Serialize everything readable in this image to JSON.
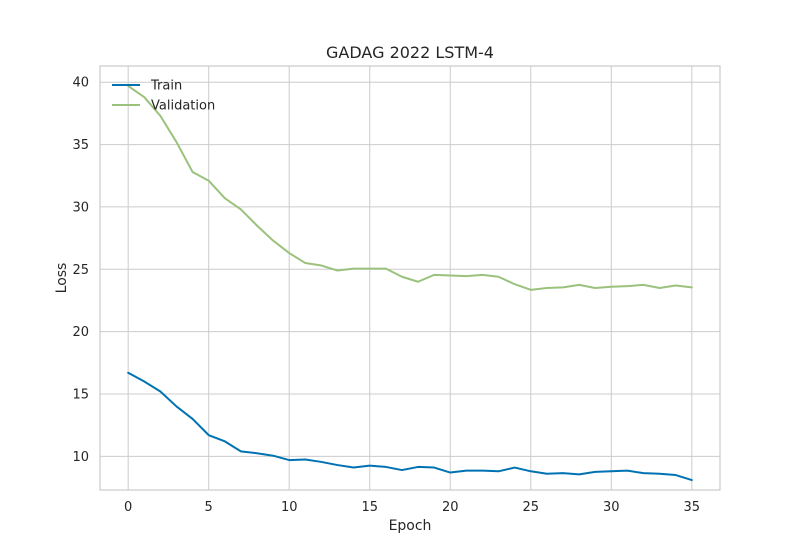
{
  "chart_data": {
    "type": "line",
    "title": "GADAG 2022 LSTM-4",
    "xlabel": "Epoch",
    "ylabel": "Loss",
    "xlim": [
      -1.75,
      36.75
    ],
    "ylim": [
      7.3,
      41.3
    ],
    "xticks": [
      0,
      5,
      10,
      15,
      20,
      25,
      30,
      35
    ],
    "yticks": [
      10,
      15,
      20,
      25,
      30,
      35,
      40
    ],
    "grid": true,
    "legend_position": "top-left",
    "x": [
      0,
      1,
      2,
      3,
      4,
      5,
      6,
      7,
      8,
      9,
      10,
      11,
      12,
      13,
      14,
      15,
      16,
      17,
      18,
      19,
      20,
      21,
      22,
      23,
      24,
      25,
      26,
      27,
      28,
      29,
      30,
      31,
      32,
      33,
      34,
      35
    ],
    "series": [
      {
        "name": "Train",
        "color": "#0072B2",
        "values": [
          16.7,
          16.0,
          15.2,
          14.0,
          13.0,
          11.7,
          11.2,
          10.4,
          10.25,
          10.05,
          9.7,
          9.75,
          9.55,
          9.3,
          9.1,
          9.25,
          9.15,
          8.9,
          9.15,
          9.1,
          8.7,
          8.85,
          8.85,
          8.8,
          9.1,
          8.8,
          8.6,
          8.65,
          8.55,
          8.75,
          8.8,
          8.85,
          8.65,
          8.6,
          8.5,
          8.1
        ]
      },
      {
        "name": "Validation",
        "color": "#9BC27C",
        "values": [
          39.7,
          38.8,
          37.3,
          35.2,
          32.8,
          32.1,
          30.7,
          29.8,
          28.5,
          27.3,
          26.3,
          25.5,
          25.3,
          24.9,
          25.05,
          25.05,
          25.05,
          24.4,
          24.0,
          24.55,
          24.5,
          24.45,
          24.55,
          24.4,
          23.8,
          23.35,
          23.5,
          23.55,
          23.75,
          23.5,
          23.6,
          23.65,
          23.75,
          23.5,
          23.7,
          23.55
        ]
      }
    ]
  }
}
